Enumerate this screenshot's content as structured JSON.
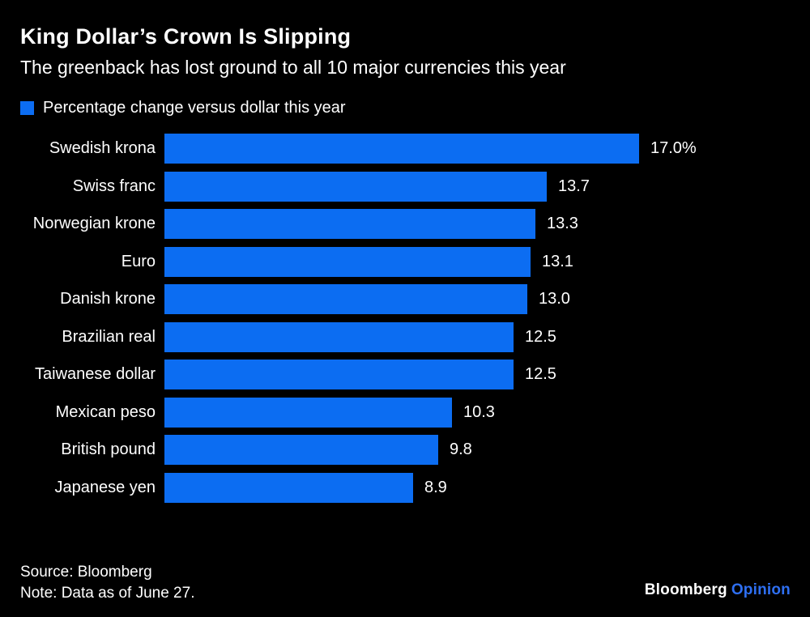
{
  "title": "King Dollar’s Crown Is Slipping",
  "subtitle": "The greenback has lost ground to all 10 major currencies this year",
  "legend": {
    "label": "Percentage change versus dollar this year"
  },
  "colors": {
    "bar": "#0c6df2",
    "background": "#000000",
    "text": "#ffffff",
    "brand_accent": "#2e6ff2"
  },
  "chart_data": {
    "type": "bar",
    "orientation": "horizontal",
    "title": "King Dollar’s Crown Is Slipping",
    "subtitle": "The greenback has lost ground to all 10 major currencies this year",
    "series_label": "Percentage change versus dollar this year",
    "categories": [
      "Swedish krona",
      "Swiss franc",
      "Norwegian krone",
      "Euro",
      "Danish krone",
      "Brazilian real",
      "Taiwanese dollar",
      "Mexican peso",
      "British pound",
      "Japanese yen"
    ],
    "values": [
      17.0,
      13.7,
      13.3,
      13.1,
      13.0,
      12.5,
      12.5,
      10.3,
      9.8,
      8.9
    ],
    "value_labels": [
      "17.0%",
      "13.7",
      "13.3",
      "13.1",
      "13.0",
      "12.5",
      "12.5",
      "10.3",
      "9.8",
      "8.9"
    ],
    "xlim": [
      0,
      17.0
    ],
    "grid": false,
    "legend_position": "top-left"
  },
  "footer": {
    "source": "Source: Bloomberg",
    "note": "Note: Data as of June 27."
  },
  "branding": {
    "name": "Bloomberg",
    "suffix": "Opinion"
  }
}
